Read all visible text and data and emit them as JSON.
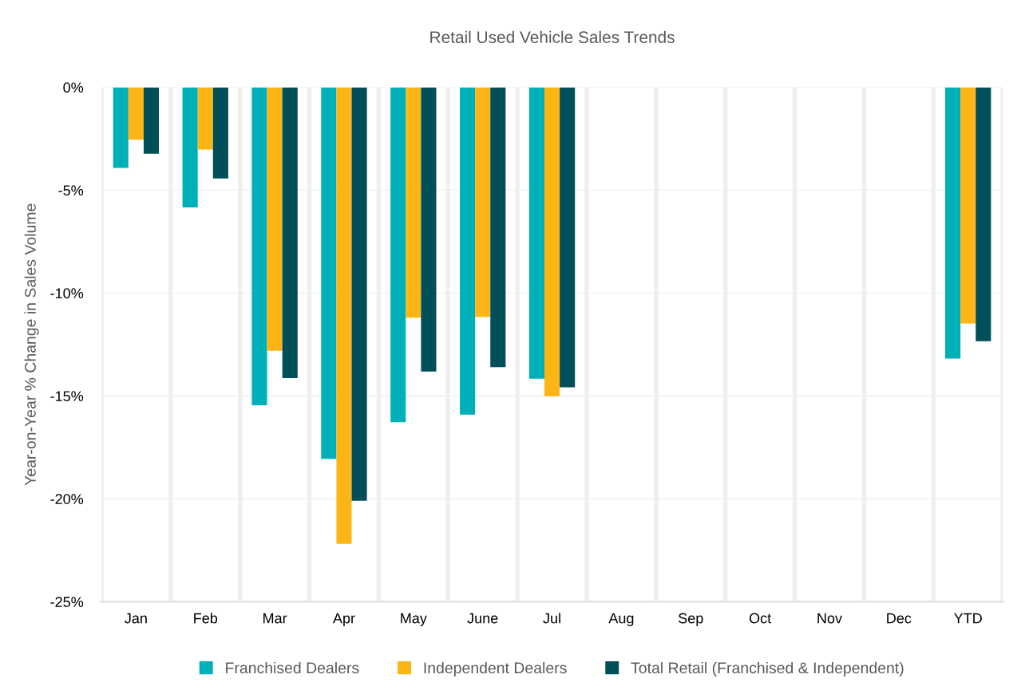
{
  "chart_data": {
    "type": "bar",
    "title": "Retail Used Vehicle Sales Trends",
    "ylabel": "Year-on-Year % Change in Sales Volume",
    "categories": [
      "Jan",
      "Feb",
      "Mar",
      "Apr",
      "May",
      "June",
      "Jul",
      "Aug",
      "Sep",
      "Oct",
      "Nov",
      "Dec",
      "YTD"
    ],
    "series": [
      {
        "name": "Franchised Dealers",
        "color": "#00b0b9",
        "values": [
          -3.92,
          -5.84,
          -15.45,
          -18.06,
          -16.28,
          -15.91,
          -14.16,
          null,
          null,
          null,
          null,
          null,
          -13.19
        ]
      },
      {
        "name": "Independent Dealers",
        "color": "#fdb515",
        "values": [
          -2.54,
          -3.03,
          -12.81,
          -22.19,
          -11.2,
          -11.16,
          -15.02,
          null,
          null,
          null,
          null,
          null,
          -11.48
        ]
      },
      {
        "name": "Total Retail (Franchised & Independent)",
        "color": "#004f59",
        "values": [
          -3.23,
          -4.43,
          -14.14,
          -20.1,
          -13.82,
          -13.6,
          -14.58,
          null,
          null,
          null,
          null,
          null,
          -12.34
        ]
      }
    ],
    "ylim": [
      -25,
      0
    ],
    "yticks": [
      {
        "value": -25,
        "label": "-25%"
      },
      {
        "value": -20,
        "label": "-20%"
      },
      {
        "value": -15,
        "label": "-15%"
      },
      {
        "value": -10,
        "label": "-10%"
      },
      {
        "value": -5,
        "label": "-5%"
      },
      {
        "value": 0,
        "label": "0%"
      }
    ],
    "grid": true,
    "legend": "bottom"
  }
}
